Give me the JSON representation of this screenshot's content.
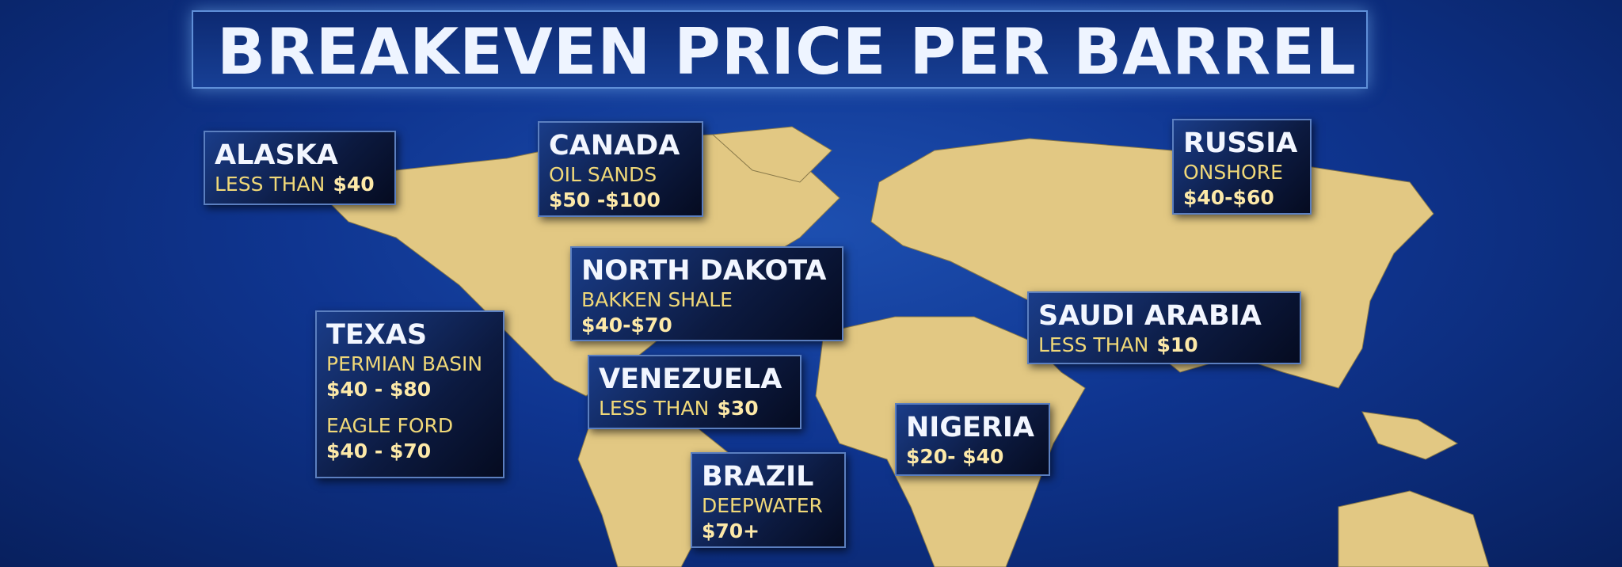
{
  "title": "BREAKEVEN PRICE PER BARREL",
  "regions": [
    {
      "name": "ALASKA",
      "items": [
        {
          "label": "LESS THAN",
          "price": "$40"
        }
      ]
    },
    {
      "name": "CANADA",
      "items": [
        {
          "label": "OIL SANDS",
          "price": "$50 -$100"
        }
      ]
    },
    {
      "name": "RUSSIA",
      "items": [
        {
          "label": "ONSHORE",
          "price": "$40-$60"
        }
      ]
    },
    {
      "name": "NORTH DAKOTA",
      "items": [
        {
          "label": "BAKKEN SHALE",
          "price": "$40-$70"
        }
      ]
    },
    {
      "name": "TEXAS",
      "items": [
        {
          "label": "PERMIAN BASIN",
          "price": "$40 - $80"
        },
        {
          "label": "EAGLE FORD",
          "price": "$40 - $70"
        }
      ]
    },
    {
      "name": "VENEZUELA",
      "items": [
        {
          "label": "LESS THAN",
          "price": "$30"
        }
      ]
    },
    {
      "name": "SAUDI ARABIA",
      "items": [
        {
          "label": "LESS THAN",
          "price": "$10"
        }
      ]
    },
    {
      "name": "NIGERIA",
      "items": [
        {
          "price": "$20- $40"
        }
      ]
    },
    {
      "name": "BRAZIL",
      "items": [
        {
          "label": "DEEPWATER",
          "price": "$70+"
        }
      ]
    }
  ]
}
